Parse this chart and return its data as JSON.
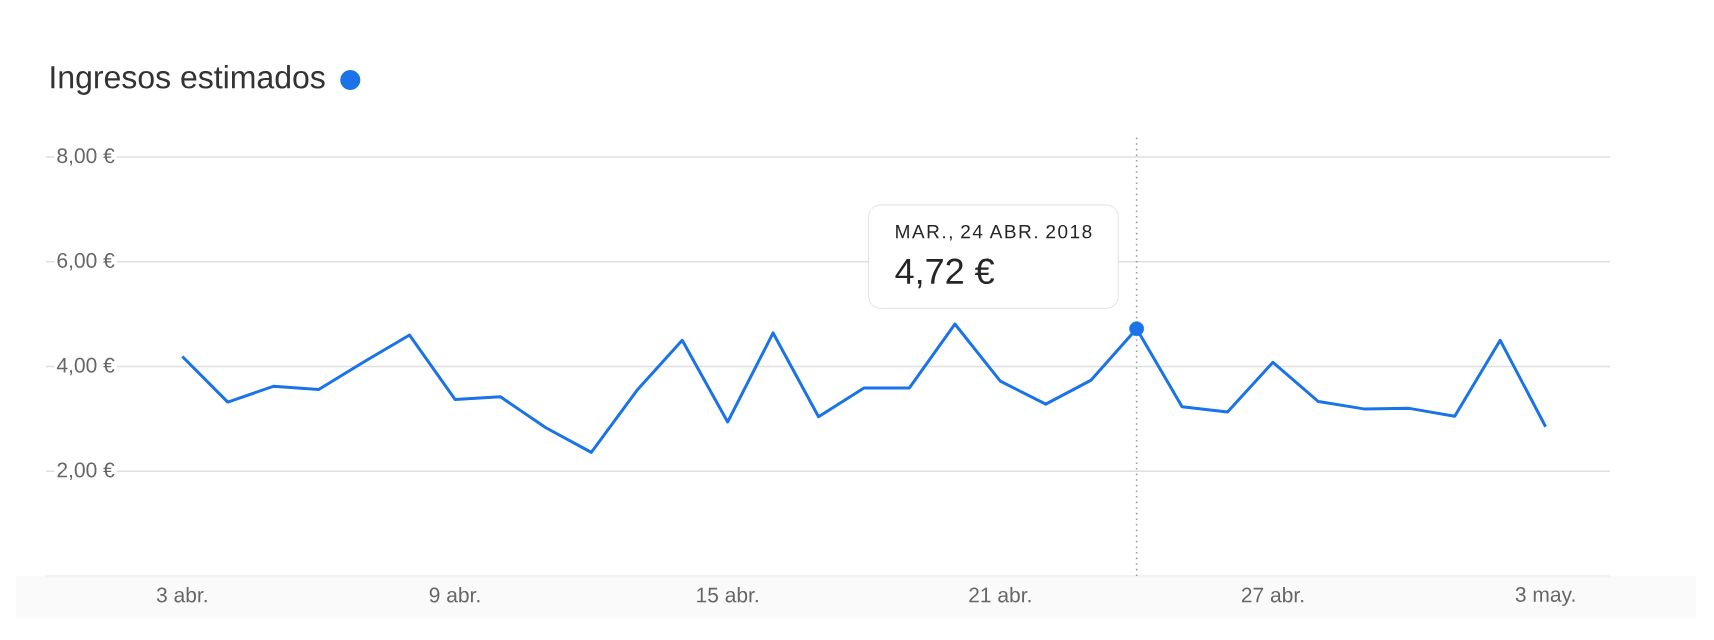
{
  "chart_data": {
    "type": "line",
    "title": "Ingresos estimados",
    "x": [
      "2018-04-03",
      "2018-04-04",
      "2018-04-05",
      "2018-04-06",
      "2018-04-07",
      "2018-04-08",
      "2018-04-09",
      "2018-04-10",
      "2018-04-11",
      "2018-04-12",
      "2018-04-13",
      "2018-04-14",
      "2018-04-15",
      "2018-04-16",
      "2018-04-17",
      "2018-04-18",
      "2018-04-19",
      "2018-04-20",
      "2018-04-21",
      "2018-04-22",
      "2018-04-23",
      "2018-04-24",
      "2018-04-25",
      "2018-04-26",
      "2018-04-27",
      "2018-04-28",
      "2018-04-29",
      "2018-04-30",
      "2018-05-01",
      "2018-05-02",
      "2018-05-03"
    ],
    "series": [
      {
        "color": "#1a73e8",
        "values": [
          4.19,
          3.32,
          3.62,
          3.56,
          4.09,
          4.6,
          3.37,
          3.42,
          2.83,
          2.36,
          3.54,
          4.5,
          2.94,
          4.64,
          3.04,
          3.59,
          3.59,
          4.81,
          3.72,
          3.28,
          3.74,
          4.72,
          3.23,
          3.13,
          4.08,
          3.33,
          3.19,
          3.2,
          3.05,
          4.5,
          2.85
        ]
      },
      {
        "type": "scatter",
        "color": "#1a73e8",
        "x": [
          "2018-04-24"
        ],
        "values": [
          4.72
        ]
      }
    ],
    "xlim": [
      "2018-03-31",
      "2018-05-04T10:00"
    ],
    "xticks": [
      {
        "value": "2018-04-03",
        "label": "3 abr."
      },
      {
        "value": "2018-04-09",
        "label": "9 abr."
      },
      {
        "value": "2018-04-15",
        "label": "15 abr."
      },
      {
        "value": "2018-04-21",
        "label": "21 abr."
      },
      {
        "value": "2018-04-27",
        "label": "27 abr."
      },
      {
        "value": "2018-05-03",
        "label": "3 may."
      }
    ],
    "ylim": [
      0,
      8.4
    ],
    "yticks": [
      {
        "value": 2,
        "label": "2,00 €"
      },
      {
        "value": 4,
        "label": "4,00 €"
      },
      {
        "value": 6,
        "label": "6,00 €"
      },
      {
        "value": 8,
        "label": "8,00 €"
      }
    ],
    "grid": "y",
    "ref_lines": [
      {
        "axis": "x",
        "value": "2018-04-24",
        "line_style": "dotted",
        "color": "#9aa0a6"
      }
    ],
    "annotations": [
      "MAR., 24 ABR. 2018",
      "4,72 €"
    ]
  }
}
